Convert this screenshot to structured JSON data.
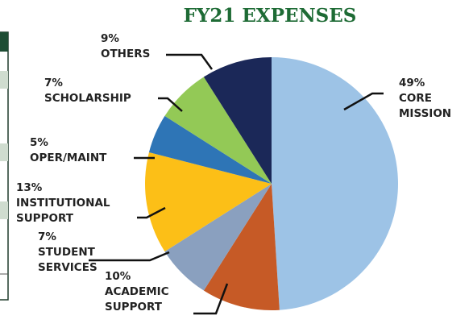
{
  "chart_data": {
    "type": "pie",
    "title": "FY21 EXPENSES",
    "categories": [
      [
        "CORE",
        "MISSION"
      ],
      [
        "ACADEMIC",
        "SUPPORT"
      ],
      [
        "STUDENT",
        "SERVICES"
      ],
      [
        "INSTITUTIONAL",
        "SUPPORT"
      ],
      [
        "OPER/MAINT"
      ],
      [
        "SCHOLARSHIP"
      ],
      [
        "OTHERS"
      ]
    ],
    "values": [
      49,
      10,
      7,
      13,
      5,
      7,
      9
    ],
    "value_labels": [
      "49%",
      "10%",
      "7%",
      "13%",
      "5%",
      "7%",
      "9%"
    ],
    "colors": [
      "#9dc3e6",
      "#c65a26",
      "#8aa0bf",
      "#fcbf17",
      "#2e75b6",
      "#93c956",
      "#1b2858"
    ]
  }
}
